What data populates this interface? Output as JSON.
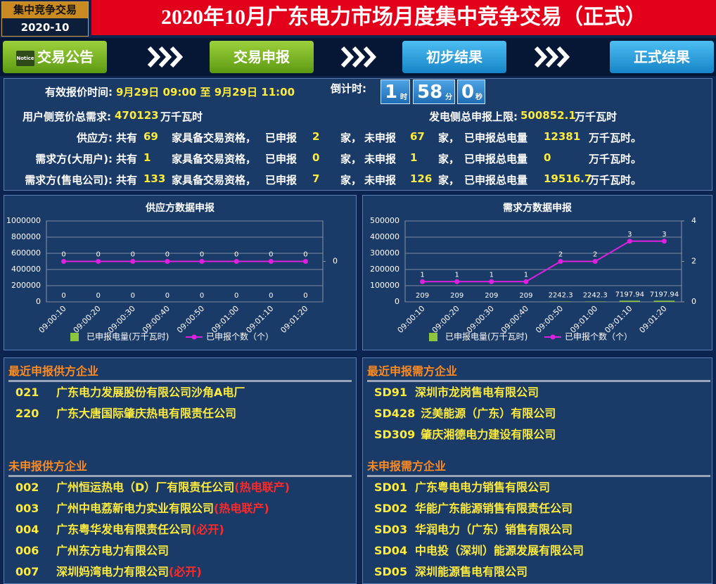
{
  "header": {
    "badge_top": "集中竞争交易",
    "badge_bottom": "2020-10",
    "title": "2020年10月广东电力市场月度集中竞争交易（正式）"
  },
  "nav": [
    {
      "icon": "Notice",
      "label": "交易公告"
    },
    {
      "label": "交易申报"
    },
    {
      "label": "初步结果"
    },
    {
      "label": "正式结果"
    }
  ],
  "info": {
    "time_label": "有效报价时间:",
    "time_value": "9月29日 09:00 至 9月29日 11:00",
    "countdown_label": "倒计时:",
    "countdown": [
      {
        "value": 1,
        "unit": "时"
      },
      {
        "value": 58,
        "unit": "分"
      },
      {
        "value": 0,
        "unit": "秒"
      }
    ],
    "demand_label": "用户侧竞价总需求:",
    "demand_value": 470123,
    "supply_cap_label": "发电侧总申报上限:",
    "supply_cap_value": 500852.1,
    "unit": "万千瓦时",
    "row_text": [
      "共有",
      "家具备交易资格，",
      "已申报",
      "家，",
      "未申报",
      "家，",
      "已申报总电量",
      "万千瓦时。"
    ],
    "rows": [
      {
        "label": "供应方:",
        "total": 69,
        "declared": 2,
        "undeclared": 67,
        "amount": 12381
      },
      {
        "label": "需求方(大用户):",
        "total": 1,
        "declared": 0,
        "undeclared": 1,
        "amount": 0
      },
      {
        "label": "需求方(售电公司):",
        "total": 133,
        "declared": 7,
        "undeclared": 126,
        "amount": 19516.7
      }
    ]
  },
  "chart_data": [
    {
      "type": "bar",
      "title": "供应方数据申报",
      "categories": [
        "09:00:10",
        "09:00:20",
        "09:00:30",
        "09:00:40",
        "09:00:50",
        "09:01:00",
        "09:01:10",
        "09:01:20"
      ],
      "series": [
        {
          "name": "已申报电量(万千瓦时)",
          "color": "#8cc63f",
          "values": [
            0,
            0,
            0,
            0,
            0,
            0,
            0,
            0
          ]
        },
        {
          "name": "已申报个数（个）",
          "type": "line",
          "axis": "y2",
          "color": "#e020e0",
          "values": [
            0,
            0,
            0,
            0,
            0,
            0,
            0,
            0
          ]
        }
      ],
      "ylim": [
        0,
        1000000
      ],
      "yticks": [
        0,
        200000,
        400000,
        600000,
        800000,
        1000000
      ],
      "y2lim": [
        -1,
        1
      ],
      "y2ticks": [
        0
      ],
      "grid": true
    },
    {
      "type": "bar",
      "title": "需求方数据申报",
      "categories": [
        "09:00:10",
        "09:00:20",
        "09:00:30",
        "09:00:40",
        "09:00:50",
        "09:01:00",
        "09:01:10",
        "09:01:20"
      ],
      "series": [
        {
          "name": "已申报电量(万千瓦时)",
          "color": "#8cc63f",
          "values": [
            209,
            209,
            209,
            209,
            2242.3,
            2242.3,
            7197.94,
            7197.94
          ]
        },
        {
          "name": "已申报个数（个）",
          "type": "line",
          "axis": "y2",
          "color": "#e020e0",
          "values": [
            1,
            1,
            1,
            1,
            2,
            2,
            3,
            3
          ]
        }
      ],
      "ylim": [
        0,
        500000
      ],
      "yticks": [
        0,
        100000,
        200000,
        300000,
        400000,
        500000
      ],
      "y2lim": [
        0,
        4
      ],
      "y2ticks": [
        0,
        2,
        4
      ],
      "grid": true
    }
  ],
  "lists": [
    {
      "title": "最近申报供方企业",
      "items": [
        {
          "code": "021",
          "name": "广东电力发展股份有限公司沙角A电厂"
        },
        {
          "code": "220",
          "name": "广东大唐国际肇庆热电有限责任公司"
        }
      ]
    },
    {
      "title": "最近申报需方企业",
      "items": [
        {
          "code": "SD91",
          "name": "深圳市龙岗售电有限公司"
        },
        {
          "code": "SD428",
          "name": "泛美能源（广东）有限公司"
        },
        {
          "code": "SD309",
          "name": "肇庆湘德电力建设有限公司"
        }
      ]
    },
    {
      "title": "未申报供方企业",
      "items": [
        {
          "code": "002",
          "name": "广州恒运热电（D）厂有限责任公司",
          "note": "(热电联产)"
        },
        {
          "code": "003",
          "name": "广州中电荔新电力实业有限公司",
          "note": "(热电联产)"
        },
        {
          "code": "004",
          "name": "广东粤华发电有限责任公司",
          "note": "(必开)"
        },
        {
          "code": "006",
          "name": "广州东方电力有限公司"
        },
        {
          "code": "007",
          "name": "深圳妈湾电力有限公司",
          "note": "(必开)"
        }
      ]
    },
    {
      "title": "未申报需方企业",
      "items": [
        {
          "code": "SD01",
          "name": "广东粤电电力销售有限公司"
        },
        {
          "code": "SD02",
          "name": "华能广东能源销售有限责任公司"
        },
        {
          "code": "SD03",
          "name": "华润电力（广东）销售有限公司"
        },
        {
          "code": "SD04",
          "name": "中电投（深圳）能源发展有限公司"
        },
        {
          "code": "SD05",
          "name": "深圳能源售电有限公司"
        }
      ]
    }
  ]
}
